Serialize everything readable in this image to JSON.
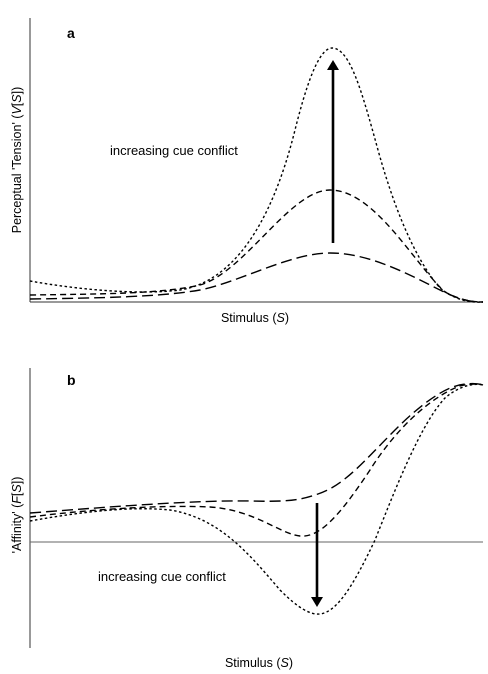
{
  "panel_a": {
    "letter": "a",
    "y_label": "Perceptual 'Tension' (",
    "y_label_var": "V",
    "y_label_bracket_open": "[",
    "y_label_s": "S",
    "y_label_bracket_close": "])",
    "x_label": "Stimulus (",
    "x_label_var": "S",
    "x_label_close": ")",
    "annotation": "increasing cue conflict",
    "curve_styles": [
      "long-dash",
      "medium-dash",
      "short-dash"
    ]
  },
  "panel_b": {
    "letter": "b",
    "y_label": "'Affinity' (",
    "y_label_var": "F",
    "y_label_bracket_open": "[",
    "y_label_s": "S",
    "y_label_bracket_close": "])",
    "x_label": "Stimulus (",
    "x_label_var": "S",
    "x_label_close": ")",
    "annotation": "increasing cue conflict",
    "curve_styles": [
      "long-dash",
      "medium-dash",
      "short-dash"
    ]
  },
  "colors": {
    "curve": "#000000",
    "axis": "#333333",
    "zero_line": "#666666"
  }
}
